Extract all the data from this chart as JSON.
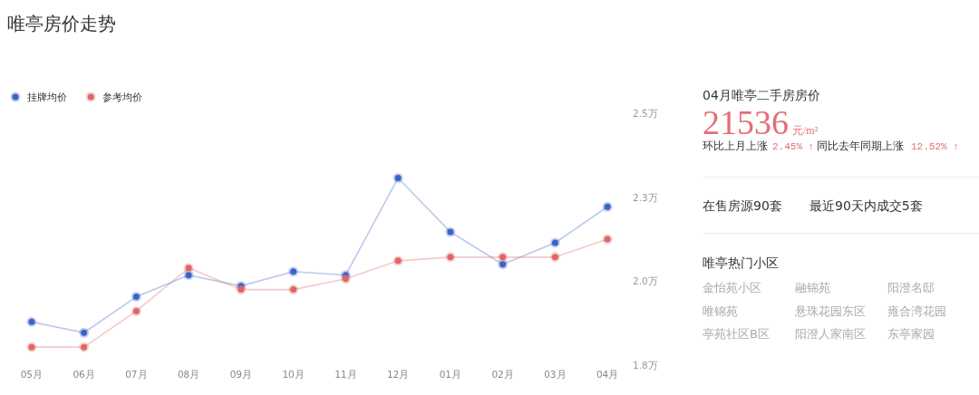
{
  "chart_data": [
    {
      "type": "line",
      "title": "唯亭房价走势",
      "categories": [
        "05月",
        "06月",
        "07月",
        "08月",
        "09月",
        "10月",
        "11月",
        "12月",
        "01月",
        "02月",
        "03月",
        "04月"
      ],
      "series": [
        {
          "name": "挂牌均价",
          "color": "#3d63c9",
          "values": [
            1.92,
            1.89,
            1.99,
            2.05,
            2.02,
            2.06,
            2.05,
            2.32,
            2.17,
            2.08,
            2.14,
            2.24
          ]
        },
        {
          "name": "参考均价",
          "color": "#e06666",
          "values": [
            1.85,
            1.85,
            1.95,
            2.07,
            2.01,
            2.01,
            2.04,
            2.09,
            2.1,
            2.1,
            2.1,
            2.15
          ]
        }
      ],
      "ylim": [
        1.8,
        2.5
      ],
      "yticks": [
        {
          "value": 1.8,
          "label": "1.8万"
        },
        {
          "value": 2.0333,
          "label": "2.0万"
        },
        {
          "value": 2.2667,
          "label": "2.3万"
        },
        {
          "value": 2.5,
          "label": "2.5万"
        }
      ],
      "legend": "top left",
      "marker": "circle",
      "line_style": "solid"
    },
    {
      "type": "other",
      "title": "04月唯亭二手房房价",
      "annotations": [
        "21536",
        "元/m²",
        "环比上月上涨",
        "2.45% ↑",
        "同比去年同期上涨",
        "12.52% ↑",
        "在售房源90套",
        "最近90天内成交5套",
        "唯亭热门小区",
        "金怡苑小区",
        "融锦苑",
        "阳澄名邸",
        "唯锦苑",
        "悬珠花园东区",
        "雍合湾花园",
        "亭苑社区B区",
        "阳澄人家南区",
        "东亭家园"
      ]
    }
  ]
}
